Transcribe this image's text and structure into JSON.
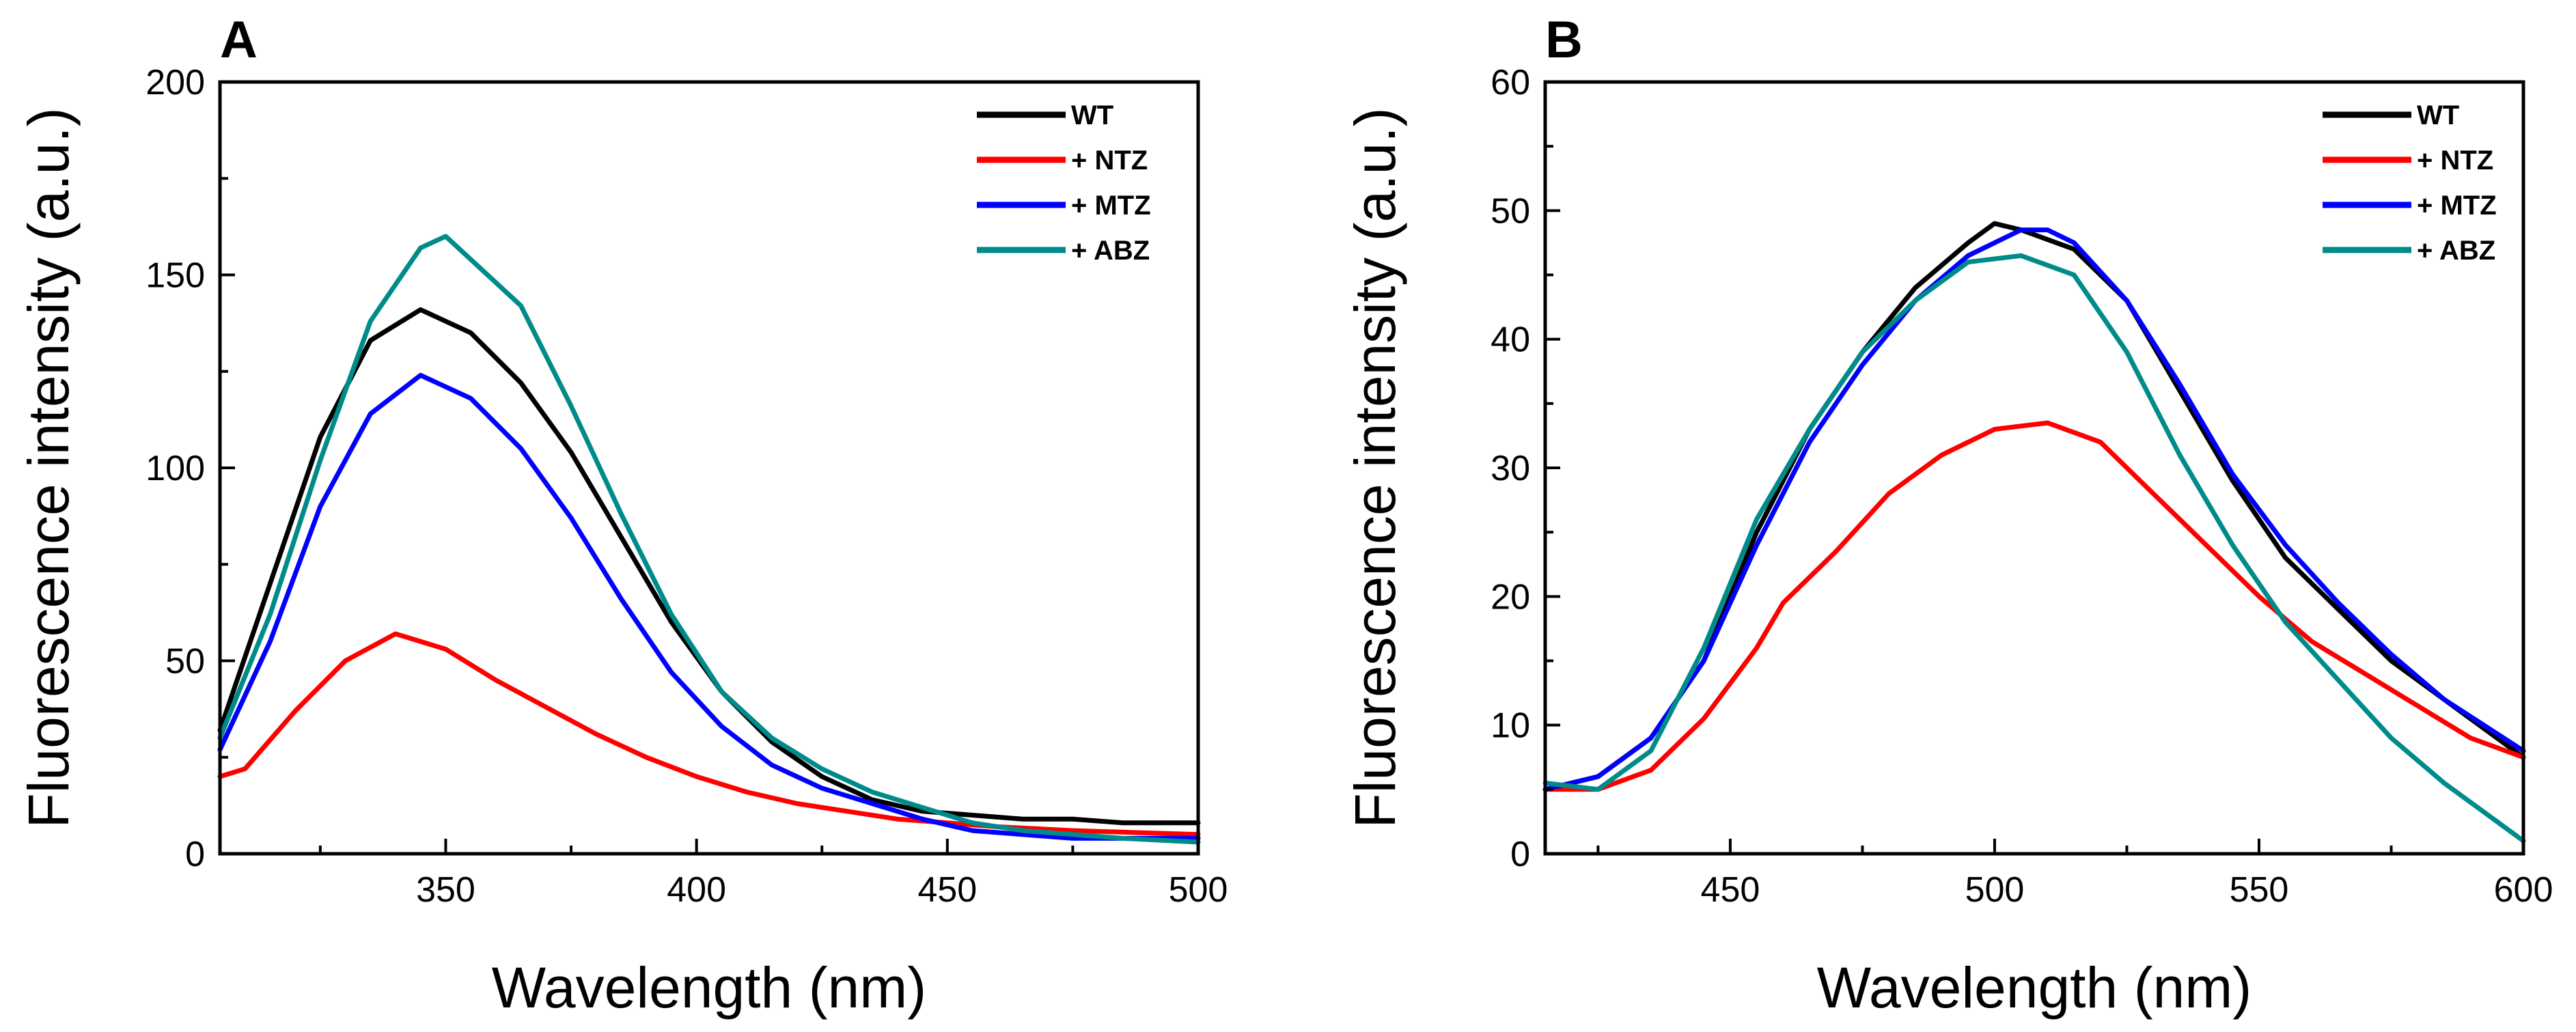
{
  "chart_data": [
    {
      "panel": "A",
      "type": "line",
      "xlabel": "Wavelength (nm)",
      "ylabel": "Fluorescence intensity (a.u.)",
      "xlim": [
        305,
        500
      ],
      "ylim": [
        0,
        200
      ],
      "x_ticks": [
        350,
        400,
        450,
        500
      ],
      "y_ticks": [
        0,
        50,
        100,
        150,
        200
      ],
      "series": [
        {
          "name": "WT",
          "color": "#000000",
          "x": [
            305,
            315,
            325,
            335,
            345,
            355,
            365,
            375,
            385,
            395,
            405,
            415,
            425,
            435,
            445,
            455,
            465,
            475,
            485,
            500
          ],
          "y": [
            32,
            70,
            108,
            133,
            141,
            135,
            122,
            104,
            82,
            60,
            42,
            29,
            20,
            14,
            11,
            10,
            9,
            9,
            8,
            8
          ]
        },
        {
          "name": "+ NTZ",
          "color": "#ff0000",
          "x": [
            305,
            310,
            320,
            330,
            340,
            350,
            360,
            370,
            380,
            390,
            400,
            410,
            420,
            430,
            440,
            450,
            460,
            475,
            500
          ],
          "y": [
            20,
            22,
            37,
            50,
            57,
            53,
            45,
            38,
            31,
            25,
            20,
            16,
            13,
            11,
            9,
            8,
            7,
            6,
            5
          ]
        },
        {
          "name": "+ MTZ",
          "color": "#0000ff",
          "x": [
            305,
            315,
            325,
            335,
            345,
            355,
            365,
            375,
            385,
            395,
            405,
            415,
            425,
            435,
            445,
            455,
            465,
            475,
            485,
            500
          ],
          "y": [
            27,
            55,
            90,
            114,
            124,
            118,
            105,
            87,
            66,
            47,
            33,
            23,
            17,
            13,
            9,
            6,
            5,
            4,
            4,
            4
          ]
        },
        {
          "name": "+ ABZ",
          "color": "#008b8b",
          "x": [
            305,
            315,
            325,
            335,
            345,
            350,
            355,
            365,
            375,
            385,
            395,
            405,
            415,
            425,
            435,
            445,
            455,
            465,
            475,
            485,
            500
          ],
          "y": [
            30,
            62,
            102,
            138,
            157,
            160,
            154,
            142,
            116,
            88,
            62,
            42,
            30,
            22,
            16,
            12,
            8,
            6,
            5,
            4,
            3
          ]
        }
      ]
    },
    {
      "panel": "B",
      "type": "line",
      "xlabel": "Wavelength (nm)",
      "ylabel": "Fluorescence intensity (a.u.)",
      "xlim": [
        415,
        600
      ],
      "ylim": [
        0,
        60
      ],
      "x_ticks": [
        450,
        500,
        550,
        600
      ],
      "y_ticks": [
        0,
        10,
        20,
        30,
        40,
        50,
        60
      ],
      "series": [
        {
          "name": "WT",
          "color": "#000000",
          "x": [
            415,
            425,
            435,
            445,
            455,
            465,
            475,
            485,
            495,
            500,
            505,
            515,
            525,
            535,
            545,
            555,
            565,
            575,
            585,
            600
          ],
          "y": [
            5,
            6,
            9,
            15,
            25,
            33,
            39,
            44,
            47.5,
            49,
            48.5,
            47,
            43,
            36,
            29,
            23,
            19,
            15,
            12,
            7.5
          ]
        },
        {
          "name": "+ NTZ",
          "color": "#ff0000",
          "x": [
            415,
            425,
            435,
            445,
            455,
            460,
            470,
            480,
            490,
            500,
            510,
            520,
            530,
            540,
            550,
            560,
            570,
            580,
            590,
            600
          ],
          "y": [
            5,
            5,
            6.5,
            10.5,
            16,
            19.5,
            23.5,
            28,
            31,
            33,
            33.5,
            32,
            28,
            24,
            20,
            16.5,
            14,
            11.5,
            9,
            7.5
          ]
        },
        {
          "name": "+ MTZ",
          "color": "#0000ff",
          "x": [
            415,
            425,
            435,
            445,
            455,
            465,
            475,
            485,
            495,
            505,
            510,
            515,
            525,
            535,
            545,
            555,
            565,
            575,
            585,
            600
          ],
          "y": [
            5,
            6,
            9,
            15,
            24,
            32,
            38,
            43,
            46.5,
            48.5,
            48.5,
            47.5,
            43,
            36.5,
            29.5,
            24,
            19.5,
            15.5,
            12,
            8
          ]
        },
        {
          "name": "+ ABZ",
          "color": "#008b8b",
          "x": [
            415,
            425,
            435,
            445,
            455,
            465,
            475,
            485,
            495,
            505,
            515,
            525,
            535,
            545,
            555,
            565,
            575,
            585,
            600
          ],
          "y": [
            5.5,
            5,
            8,
            16,
            26,
            33,
            39,
            43,
            46,
            46.5,
            45,
            39,
            31,
            24,
            18,
            13.5,
            9,
            5.5,
            1
          ]
        }
      ]
    }
  ]
}
